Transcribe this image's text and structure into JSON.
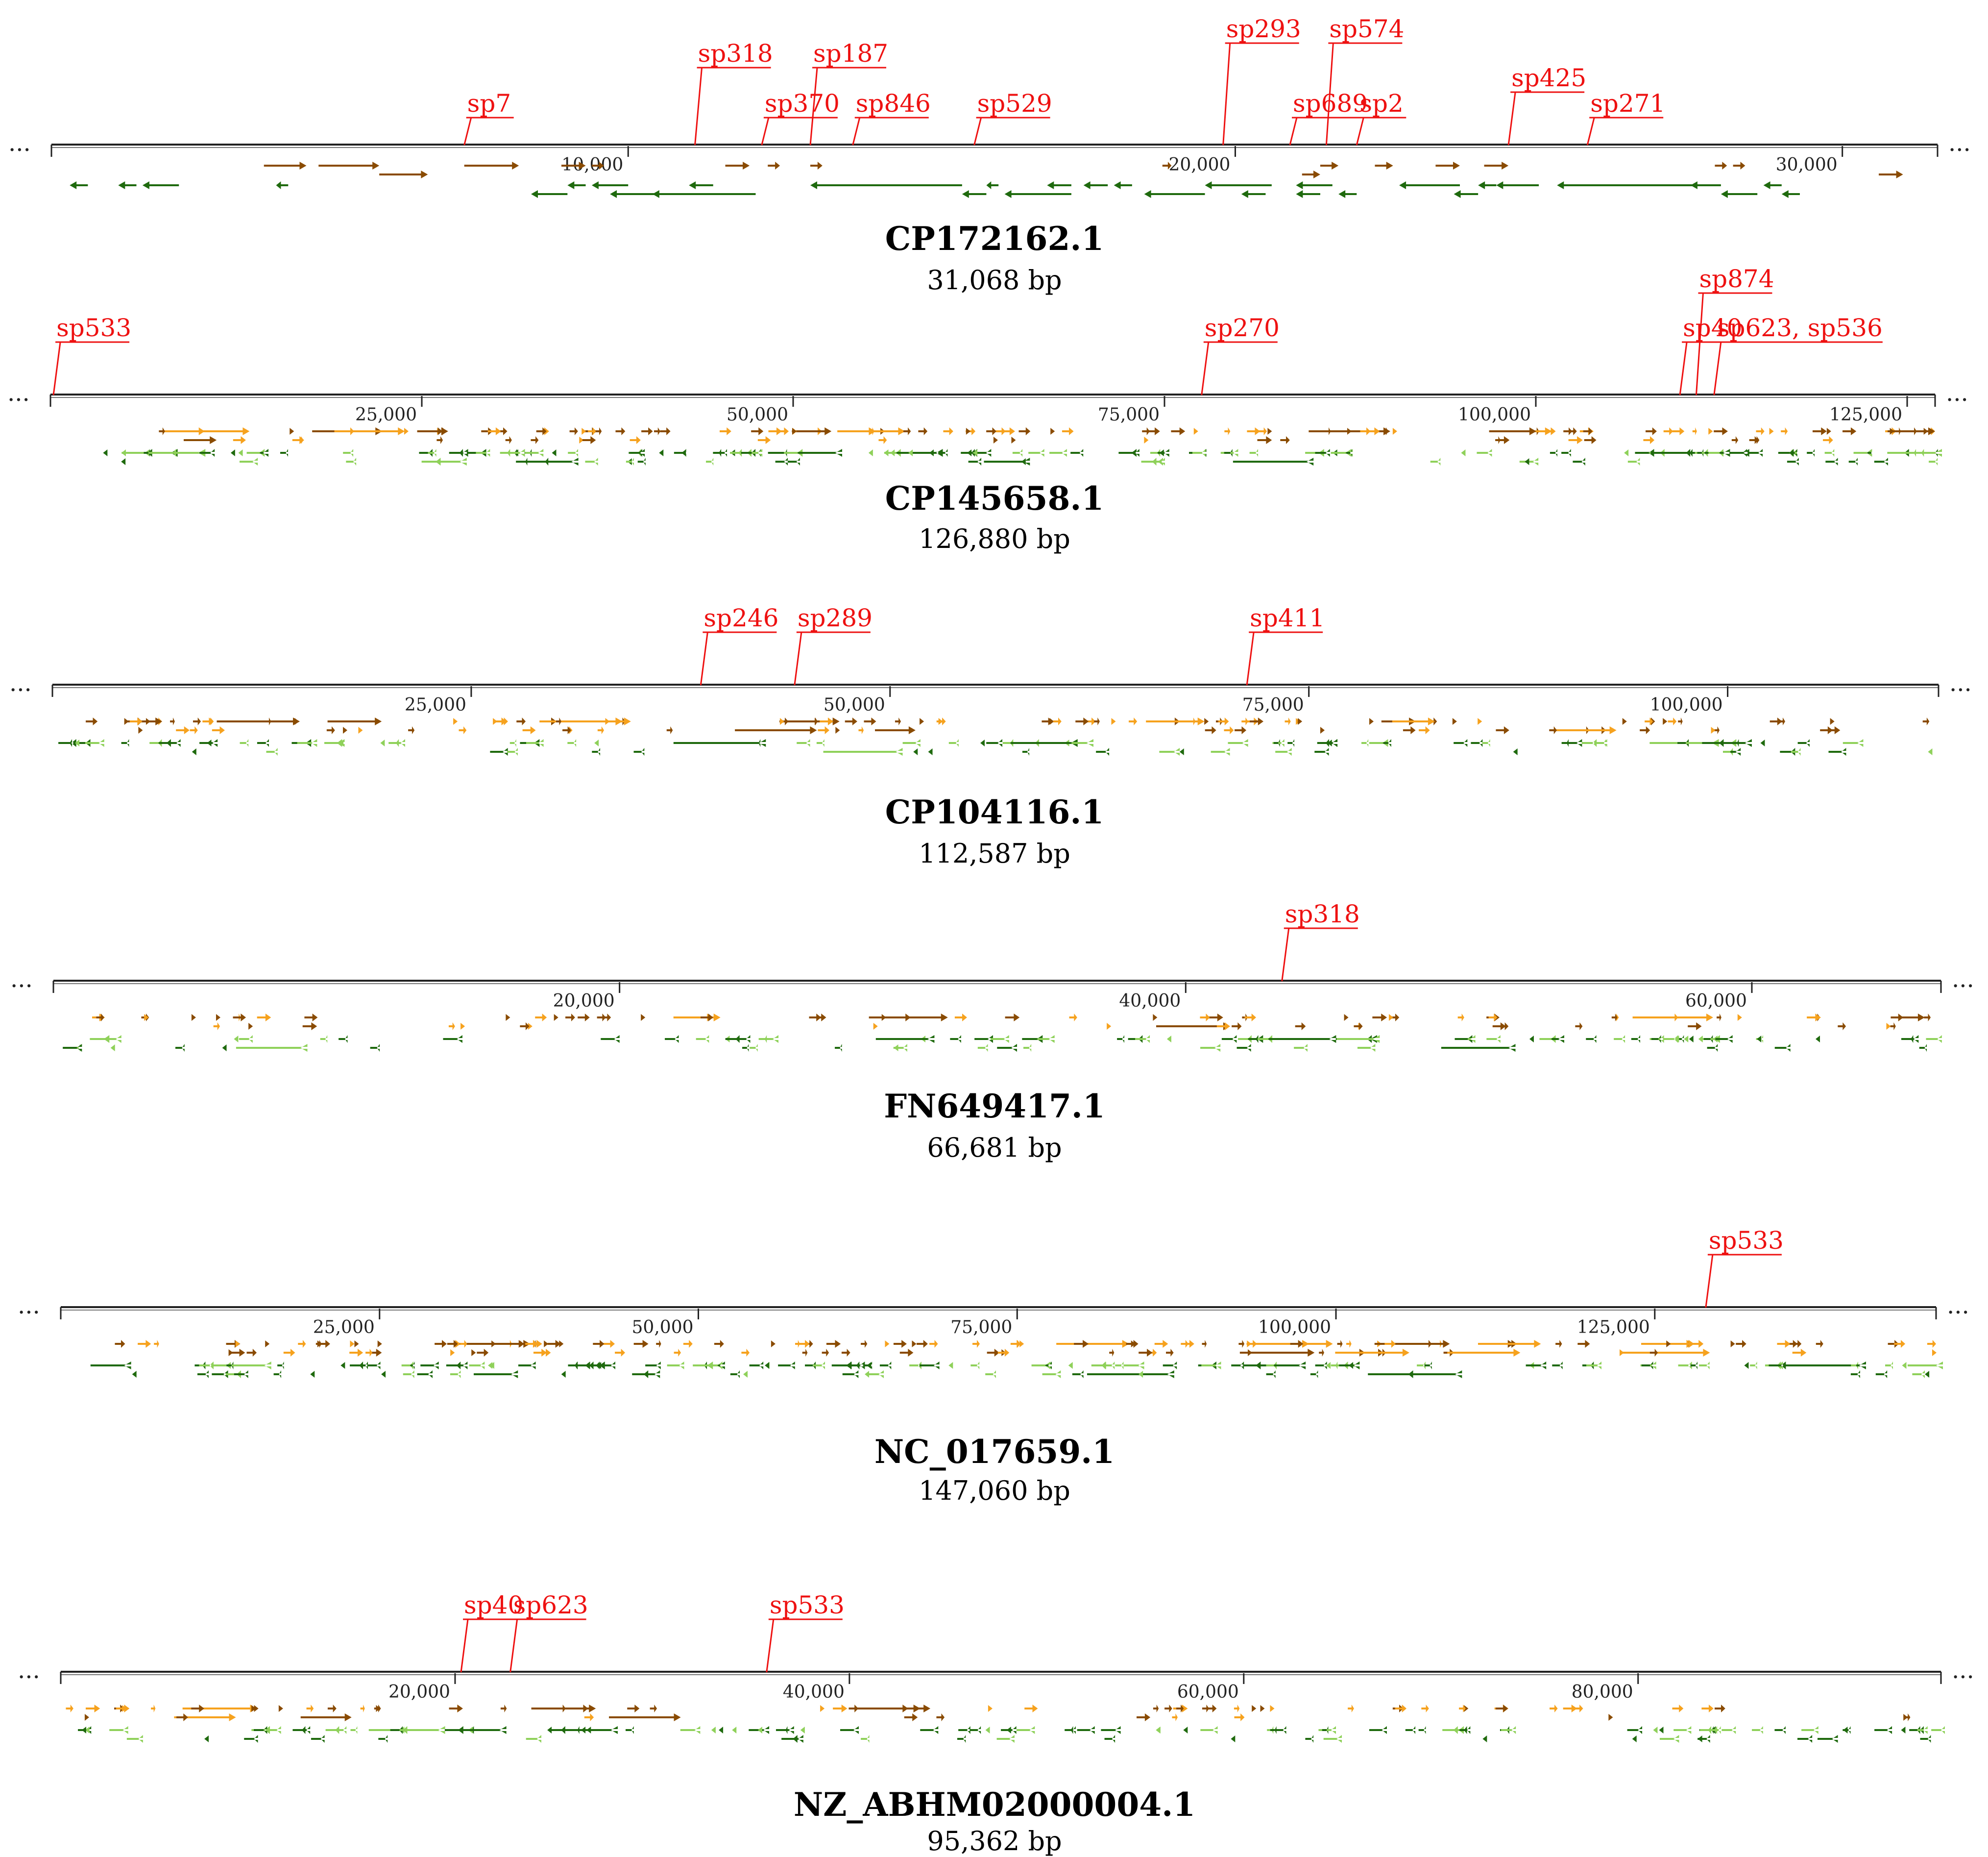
{
  "colors": {
    "axis": "#222222",
    "sp_label": "#ee1111",
    "forward_dark": "#8a4b00",
    "forward_light": "#f6a21e",
    "reverse_dark": "#1f6a0e",
    "reverse_light": "#8fd15a",
    "title": "#000000"
  },
  "ellipsis": "...",
  "panels": [
    {
      "id": "CP172162.1",
      "title": "CP172162.1",
      "length_label": "31,068 bp",
      "length": 31068,
      "axis_start": 500,
      "axis_end": 31568,
      "ticks": [
        {
          "pos": 10000,
          "label": "10,000"
        },
        {
          "pos": 20000,
          "label": "20,000"
        },
        {
          "pos": 30000,
          "label": "30,000"
        }
      ],
      "spacers": [
        {
          "name": "sp7",
          "pos": 7300,
          "level": 1
        },
        {
          "name": "sp318",
          "pos": 11100,
          "level": 3
        },
        {
          "name": "sp370",
          "pos": 12200,
          "level": 1
        },
        {
          "name": "sp187",
          "pos": 13000,
          "level": 3
        },
        {
          "name": "sp846",
          "pos": 13700,
          "level": 1
        },
        {
          "name": "sp529",
          "pos": 15700,
          "level": 1
        },
        {
          "name": "sp293",
          "pos": 19800,
          "level": 4
        },
        {
          "name": "sp689",
          "pos": 20900,
          "level": 1
        },
        {
          "name": "sp574",
          "pos": 21500,
          "level": 4
        },
        {
          "name": "sp2",
          "pos": 22000,
          "level": 1
        },
        {
          "name": "sp425",
          "pos": 24500,
          "level": 2
        },
        {
          "name": "sp271",
          "pos": 25800,
          "level": 1
        }
      ],
      "genes": {
        "dense": false,
        "forward": [
          {
            "start": 4000,
            "end": 4700,
            "row": 0
          },
          {
            "start": 4900,
            "end": 5900,
            "row": 0
          },
          {
            "start": 5900,
            "end": 6700,
            "row": 1
          },
          {
            "start": 7300,
            "end": 8200,
            "row": 0
          },
          {
            "start": 8900,
            "end": 9300,
            "row": 0
          },
          {
            "start": 9400,
            "end": 9600,
            "row": 0
          },
          {
            "start": 11600,
            "end": 12000,
            "row": 0
          },
          {
            "start": 12300,
            "end": 12500,
            "row": 0
          },
          {
            "start": 13000,
            "end": 13200,
            "row": 0
          },
          {
            "start": 18800,
            "end": 18950,
            "row": 0
          },
          {
            "start": 21400,
            "end": 21700,
            "row": 0
          },
          {
            "start": 21100,
            "end": 21400,
            "row": 1
          },
          {
            "start": 22300,
            "end": 22600,
            "row": 0
          },
          {
            "start": 23300,
            "end": 23700,
            "row": 0
          },
          {
            "start": 24100,
            "end": 24500,
            "row": 0
          },
          {
            "start": 27900,
            "end": 28100,
            "row": 0
          },
          {
            "start": 28200,
            "end": 28400,
            "row": 0
          },
          {
            "start": 30600,
            "end": 31000,
            "row": 1
          }
        ],
        "reverse": [
          {
            "start": 800,
            "end": 1100,
            "row": 0
          },
          {
            "start": 1600,
            "end": 1900,
            "row": 0
          },
          {
            "start": 2000,
            "end": 2600,
            "row": 0
          },
          {
            "start": 4200,
            "end": 4400,
            "row": 0
          },
          {
            "start": 8400,
            "end": 9000,
            "row": 1
          },
          {
            "start": 9000,
            "end": 9300,
            "row": 0
          },
          {
            "start": 9400,
            "end": 10000,
            "row": 0
          },
          {
            "start": 9700,
            "end": 12100,
            "row": 1
          },
          {
            "start": 10400,
            "end": 11100,
            "row": 1
          },
          {
            "start": 11000,
            "end": 11400,
            "row": 0
          },
          {
            "start": 13000,
            "end": 15500,
            "row": 0
          },
          {
            "start": 15500,
            "end": 15900,
            "row": 1
          },
          {
            "start": 15900,
            "end": 16100,
            "row": 0
          },
          {
            "start": 16200,
            "end": 17300,
            "row": 1
          },
          {
            "start": 16900,
            "end": 17300,
            "row": 0
          },
          {
            "start": 17500,
            "end": 17900,
            "row": 0
          },
          {
            "start": 18000,
            "end": 18300,
            "row": 0
          },
          {
            "start": 18500,
            "end": 19500,
            "row": 1
          },
          {
            "start": 19500,
            "end": 20600,
            "row": 0
          },
          {
            "start": 20100,
            "end": 20500,
            "row": 1
          },
          {
            "start": 21000,
            "end": 21600,
            "row": 0
          },
          {
            "start": 21000,
            "end": 21400,
            "row": 1
          },
          {
            "start": 21700,
            "end": 22000,
            "row": 1
          },
          {
            "start": 22700,
            "end": 23700,
            "row": 0
          },
          {
            "start": 23600,
            "end": 24000,
            "row": 1
          },
          {
            "start": 24000,
            "end": 24300,
            "row": 0
          },
          {
            "start": 24300,
            "end": 25000,
            "row": 0
          },
          {
            "start": 25300,
            "end": 27600,
            "row": 0
          },
          {
            "start": 27500,
            "end": 28000,
            "row": 0
          },
          {
            "start": 28000,
            "end": 28600,
            "row": 1
          },
          {
            "start": 28700,
            "end": 29000,
            "row": 0
          },
          {
            "start": 29000,
            "end": 29300,
            "row": 1
          }
        ]
      }
    },
    {
      "id": "CP145658.1",
      "title": "CP145658.1",
      "length_label": "126,880 bp",
      "length": 126880,
      "axis_start": 0,
      "axis_end": 126880,
      "ticks": [
        {
          "pos": 25000,
          "label": "25,000"
        },
        {
          "pos": 50000,
          "label": "50,000"
        },
        {
          "pos": 75000,
          "label": "75,000"
        },
        {
          "pos": 100000,
          "label": "100,000"
        },
        {
          "pos": 125000,
          "label": "125,000"
        }
      ],
      "spacers": [
        {
          "name": "sp533",
          "pos": 200,
          "level": 2
        },
        {
          "name": "sp270",
          "pos": 77500,
          "level": 2
        },
        {
          "name": "sp40",
          "pos": 109700,
          "level": 2
        },
        {
          "name": "sp874",
          "pos": 110800,
          "level": 4
        },
        {
          "name": "sp623, sp536",
          "pos": 112000,
          "level": 2
        }
      ],
      "genes": {
        "dense": true,
        "seed": 11,
        "count_f": 120,
        "count_r": 140,
        "long_frac": 0.08
      }
    },
    {
      "id": "CP104116.1",
      "title": "CP104116.1",
      "length_label": "112,587 bp",
      "length": 112587,
      "axis_start": 0,
      "axis_end": 112587,
      "ticks": [
        {
          "pos": 25000,
          "label": "25,000"
        },
        {
          "pos": 50000,
          "label": "50,000"
        },
        {
          "pos": 75000,
          "label": "75,000"
        },
        {
          "pos": 100000,
          "label": "100,000"
        }
      ],
      "spacers": [
        {
          "name": "sp246",
          "pos": 38700,
          "level": 2
        },
        {
          "name": "sp289",
          "pos": 44300,
          "level": 2
        },
        {
          "name": "sp411",
          "pos": 71300,
          "level": 2
        }
      ],
      "genes": {
        "dense": true,
        "seed": 23,
        "count_f": 110,
        "count_r": 90,
        "long_frac": 0.07
      }
    },
    {
      "id": "FN649417.1",
      "title": "FN649417.1",
      "length_label": "66,681 bp",
      "length": 66681,
      "axis_start": 0,
      "axis_end": 66681,
      "ticks": [
        {
          "pos": 20000,
          "label": "20,000"
        },
        {
          "pos": 40000,
          "label": "40,000"
        },
        {
          "pos": 60000,
          "label": "60,000"
        }
      ],
      "spacers": [
        {
          "name": "sp318",
          "pos": 43400,
          "level": 2
        }
      ],
      "genes": {
        "dense": true,
        "seed": 37,
        "count_f": 75,
        "count_r": 85,
        "long_frac": 0.08
      }
    },
    {
      "id": "NC_017659.1",
      "title": "NC_017659.1",
      "length_label": "147,060 bp",
      "length": 147060,
      "axis_start": 0,
      "axis_end": 147060,
      "ticks": [
        {
          "pos": 25000,
          "label": "25,000"
        },
        {
          "pos": 50000,
          "label": "50,000"
        },
        {
          "pos": 75000,
          "label": "75,000"
        },
        {
          "pos": 100000,
          "label": "100,000"
        },
        {
          "pos": 125000,
          "label": "125,000"
        }
      ],
      "spacers": [
        {
          "name": "sp533",
          "pos": 129000,
          "level": 2
        }
      ],
      "genes": {
        "dense": true,
        "seed": 53,
        "count_f": 130,
        "count_r": 130,
        "long_frac": 0.06
      }
    },
    {
      "id": "NZ_ABHM02000004.1",
      "title": "NZ_ABHM02000004.1",
      "length_label": "95,362 bp",
      "length": 95362,
      "axis_start": 0,
      "axis_end": 95362,
      "ticks": [
        {
          "pos": 20000,
          "label": "20,000"
        },
        {
          "pos": 40000,
          "label": "40,000"
        },
        {
          "pos": 60000,
          "label": "60,000"
        },
        {
          "pos": 80000,
          "label": "80,000"
        }
      ],
      "spacers": [
        {
          "name": "sp40",
          "pos": 20300,
          "level": 2
        },
        {
          "name": "sp623",
          "pos": 22800,
          "level": 2
        },
        {
          "name": "sp533",
          "pos": 35800,
          "level": 2
        }
      ],
      "genes": {
        "dense": true,
        "seed": 71,
        "count_f": 70,
        "count_r": 110,
        "long_frac": 0.07
      }
    }
  ]
}
